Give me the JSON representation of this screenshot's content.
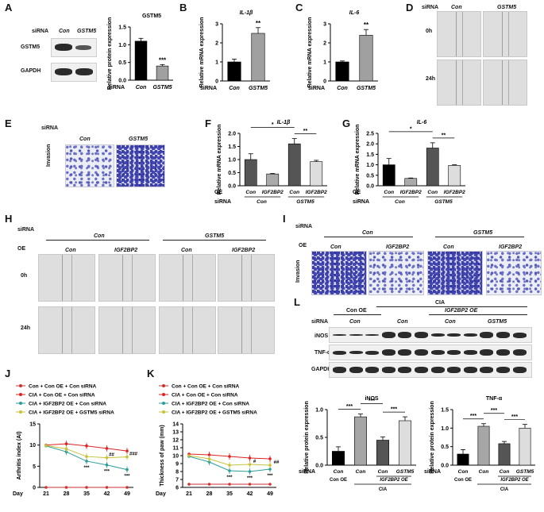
{
  "panels": {
    "A": "A",
    "B": "B",
    "C": "C",
    "D": "D",
    "E": "E",
    "F": "F",
    "G": "G",
    "H": "H",
    "I": "I",
    "J": "J",
    "K": "K",
    "L": "L"
  },
  "common": {
    "sirna": "siRNA",
    "oe": "OE",
    "con": "Con",
    "gstm5": "GSTM5",
    "igf2bp2": "IGF2BP2",
    "t0": "0h",
    "t24": "24h",
    "invasion": "Invasion",
    "cia": "CIA",
    "day": "Day"
  },
  "A": {
    "blot_labels": [
      "GSTM5",
      "GAPDH"
    ],
    "chart_title": "GSTM5",
    "ylabel": "Relative protein expression"
  },
  "B": {
    "title": "IL-1β",
    "ylabel": "Relative mRNA expression"
  },
  "C": {
    "title": "IL-6",
    "ylabel": "Relative mRNA expression"
  },
  "F": {
    "title": "IL-1β",
    "ylabel": "Relative mRNA expression"
  },
  "G": {
    "title": "IL-6",
    "ylabel": "Relative mRNA expression"
  },
  "J": {
    "ylabel": "Arthritis index (AI)"
  },
  "K": {
    "ylabel": "Thickness of paw (mm)"
  },
  "JK_legend": [
    {
      "text": "Con + Con OE + Con siRNA",
      "color": "#cc3333"
    },
    {
      "text": "CIA + Con OE + Con siRNA",
      "color": "#dd2222"
    },
    {
      "text": "CIA + IGF2BP2 OE + Con siRNA",
      "color": "#2a9d9a"
    },
    {
      "text": "CIA + IGF2BP2 OE + GSTM5 siRNA",
      "color": "#c7c23a"
    }
  ],
  "L": {
    "header_con_oe": "Con OE",
    "header_cia": "CIA",
    "header_igf_oe": "IGF2BP2 OE",
    "blot_labels": [
      "iNOS",
      "TNF-α",
      "GAPDH"
    ],
    "chart1_title": "iNOS",
    "chart2_title": "TNF-α",
    "ylabel": "Relative protein expression",
    "x_con_oe": "Con OE",
    "x_igf_oe": "IGF2BP2 OE"
  },
  "chart_data": [
    {
      "id": "A",
      "type": "bar",
      "title": "GSTM5",
      "ylabel": "Relative protein expression",
      "categories": [
        "Con",
        "GSTM5"
      ],
      "values": [
        1.1,
        0.4
      ],
      "errors": [
        0.08,
        0.04
      ],
      "colors": [
        "#000000",
        "#a0a0a0"
      ],
      "ylim": [
        0,
        1.5
      ],
      "yticks": [
        "0.0",
        "0.5",
        "1.0",
        "1.5"
      ],
      "annotations": [
        {
          "bar": 1,
          "text": "***"
        }
      ]
    },
    {
      "id": "B",
      "type": "bar",
      "title": "IL-1β",
      "ylabel": "Relative mRNA expression",
      "categories": [
        "Con",
        "GSTM5"
      ],
      "values": [
        1.0,
        2.5
      ],
      "errors": [
        0.15,
        0.3
      ],
      "colors": [
        "#000000",
        "#a0a0a0"
      ],
      "ylim": [
        0,
        3
      ],
      "yticks": [
        "0",
        "1",
        "2",
        "3"
      ],
      "annotations": [
        {
          "bar": 1,
          "text": "**"
        }
      ]
    },
    {
      "id": "C",
      "type": "bar",
      "title": "IL-6",
      "ylabel": "Relative mRNA expression",
      "categories": [
        "Con",
        "GSTM5"
      ],
      "values": [
        1.0,
        2.4
      ],
      "errors": [
        0.05,
        0.3
      ],
      "colors": [
        "#000000",
        "#a0a0a0"
      ],
      "ylim": [
        0,
        3
      ],
      "yticks": [
        "0",
        "1",
        "2",
        "3"
      ],
      "annotations": [
        {
          "bar": 1,
          "text": "**"
        }
      ]
    },
    {
      "id": "F",
      "type": "bar",
      "title": "IL-1β",
      "ylabel": "Relative mRNA expression",
      "categories": [
        "Con",
        "IGF2BP2",
        "Con",
        "IGF2BP2"
      ],
      "values": [
        1.0,
        0.45,
        1.6,
        0.92
      ],
      "errors": [
        0.22,
        0.02,
        0.2,
        0.05
      ],
      "colors": [
        "#555555",
        "#aaaaaa",
        "#555555",
        "#dddddd"
      ],
      "ylim": [
        0,
        2.0
      ],
      "yticks": [
        "0.0",
        "0.5",
        "1.0",
        "1.5",
        "2.0"
      ],
      "annotations": [
        {
          "from": 0,
          "to": 2,
          "text": "*"
        },
        {
          "from": 2,
          "to": 3,
          "text": "**"
        }
      ]
    },
    {
      "id": "G",
      "type": "bar",
      "title": "IL-6",
      "ylabel": "Relative mRNA expression",
      "categories": [
        "Con",
        "IGF2BP2",
        "Con",
        "IGF2BP2"
      ],
      "values": [
        1.0,
        0.35,
        1.8,
        0.97
      ],
      "errors": [
        0.3,
        0.02,
        0.25,
        0.03
      ],
      "colors": [
        "#000000",
        "#aaaaaa",
        "#555555",
        "#dddddd"
      ],
      "ylim": [
        0,
        2.5
      ],
      "yticks": [
        "0.0",
        "0.5",
        "1.0",
        "1.5",
        "2.0",
        "2.5"
      ],
      "annotations": [
        {
          "from": 0,
          "to": 2,
          "text": "*"
        },
        {
          "from": 2,
          "to": 3,
          "text": "**"
        }
      ]
    },
    {
      "id": "J",
      "type": "line",
      "ylabel": "Arthritis index (AI)",
      "xlabel": "Day",
      "x": [
        21,
        28,
        35,
        42,
        49
      ],
      "ylim": [
        0,
        15
      ],
      "yticks": [
        "0",
        "5",
        "10",
        "15"
      ],
      "series": [
        {
          "name": "Con + Con OE + Con siRNA",
          "color": "#cc3333",
          "values": [
            0,
            0,
            0,
            0,
            0
          ]
        },
        {
          "name": "CIA + Con OE + Con siRNA",
          "color": "#dd2222",
          "values": [
            10.0,
            10.3,
            9.8,
            9.2,
            8.6
          ]
        },
        {
          "name": "CIA + IGF2BP2 OE + Con siRNA",
          "color": "#2a9d9a",
          "values": [
            9.8,
            8.4,
            6.2,
            5.3,
            4.2
          ]
        },
        {
          "name": "CIA + IGF2BP2 OE + GSTM5 siRNA",
          "color": "#c7c23a",
          "values": [
            9.9,
            9.1,
            7.3,
            7.0,
            7.2
          ]
        }
      ],
      "annotations": [
        "***",
        "***",
        "***",
        "##",
        "###"
      ]
    },
    {
      "id": "K",
      "type": "line",
      "ylabel": "Thickness of paw (mm)",
      "xlabel": "Day",
      "x": [
        21,
        28,
        35,
        42,
        49
      ],
      "ylim": [
        6,
        14
      ],
      "yticks": [
        "6",
        "7",
        "8",
        "9",
        "10",
        "11",
        "12",
        "13",
        "14"
      ],
      "series": [
        {
          "name": "Con + Con OE + Con siRNA",
          "color": "#cc3333",
          "values": [
            6.4,
            6.4,
            6.4,
            6.4,
            6.4
          ]
        },
        {
          "name": "CIA + Con OE + Con siRNA",
          "color": "#dd2222",
          "values": [
            10.2,
            10.1,
            9.9,
            9.7,
            9.6
          ]
        },
        {
          "name": "CIA + IGF2BP2 OE + Con siRNA",
          "color": "#2a9d9a",
          "values": [
            9.9,
            9.2,
            8.1,
            8.0,
            8.3
          ]
        },
        {
          "name": "CIA + IGF2BP2 OE + GSTM5 siRNA",
          "color": "#c7c23a",
          "values": [
            10.0,
            9.6,
            8.8,
            8.9,
            8.8
          ]
        }
      ],
      "annotations": [
        "***",
        "***",
        "***",
        "#",
        "##"
      ]
    },
    {
      "id": "L1",
      "type": "bar",
      "title": "iNOS",
      "ylabel": "Relative protein expression",
      "categories": [
        "Con",
        "Con",
        "Con",
        "GSTM5"
      ],
      "values": [
        0.25,
        0.87,
        0.45,
        0.8
      ],
      "errors": [
        0.08,
        0.05,
        0.06,
        0.07
      ],
      "colors": [
        "#000000",
        "#a6a6a6",
        "#555555",
        "#dddddd"
      ],
      "ylim": [
        0,
        1.0
      ],
      "yticks": [
        "0.0",
        "0.5",
        "1.0"
      ],
      "annotations": [
        {
          "from": 0,
          "to": 1,
          "text": "***"
        },
        {
          "from": 1,
          "to": 2,
          "text": "***"
        },
        {
          "from": 2,
          "to": 3,
          "text": "***"
        }
      ]
    },
    {
      "id": "L2",
      "type": "bar",
      "title": "TNF-α",
      "ylabel": "Relative protein expression",
      "categories": [
        "Con",
        "Con",
        "Con",
        "GSTM5"
      ],
      "values": [
        0.3,
        1.05,
        0.58,
        1.0
      ],
      "errors": [
        0.12,
        0.07,
        0.06,
        0.1
      ],
      "colors": [
        "#000000",
        "#a6a6a6",
        "#555555",
        "#dddddd"
      ],
      "ylim": [
        0,
        1.5
      ],
      "yticks": [
        "0.0",
        "0.5",
        "1.0",
        "1.5"
      ],
      "annotations": [
        {
          "from": 0,
          "to": 1,
          "text": "***"
        },
        {
          "from": 1,
          "to": 2,
          "text": "***"
        },
        {
          "from": 2,
          "to": 3,
          "text": "***"
        }
      ]
    }
  ]
}
